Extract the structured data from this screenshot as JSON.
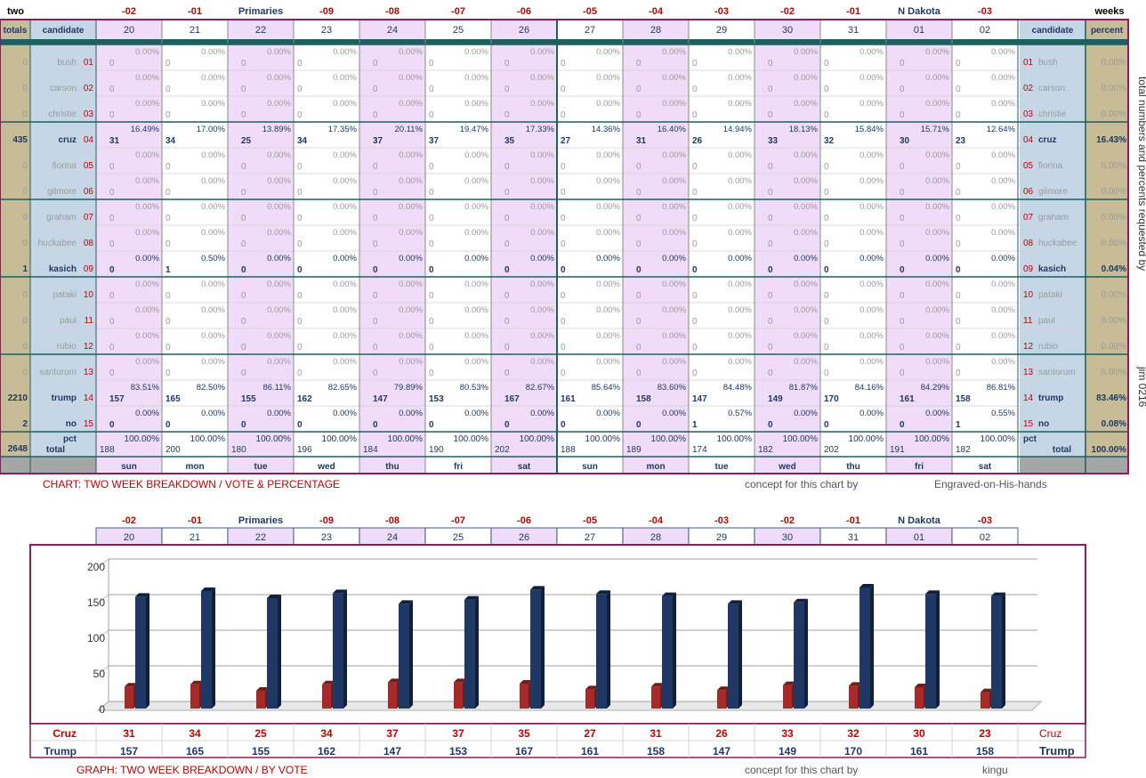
{
  "chart_data": [
    {
      "type": "table",
      "title": "CHART: TWO WEEK BREAKDOWN / VOTE & PERCENTAGE",
      "corner_left": "two",
      "corner_right": "weeks",
      "header_totals": "totals",
      "header_candidate": "candidate",
      "header_percent": "percent",
      "top_labels": [
        "-02",
        "-01",
        "Primaries",
        "-09",
        "-08",
        "-07",
        "-06",
        "-05",
        "-04",
        "-03",
        "-02",
        "-01",
        "N Dakota",
        "-03"
      ],
      "days": [
        "20",
        "21",
        "22",
        "23",
        "24",
        "25",
        "26",
        "27",
        "28",
        "29",
        "30",
        "31",
        "01",
        "02"
      ],
      "weekdays": [
        "sun",
        "mon",
        "tue",
        "wed",
        "thu",
        "fri",
        "sat",
        "sun",
        "mon",
        "tue",
        "wed",
        "thu",
        "fri",
        "sat"
      ],
      "candidates": [
        {
          "num": "01",
          "name": "bush",
          "total": "0",
          "percent": "0.00%"
        },
        {
          "num": "02",
          "name": "carson",
          "total": "0",
          "percent": "0.00%"
        },
        {
          "num": "03",
          "name": "christie",
          "total": "0",
          "percent": "0.00%"
        },
        {
          "num": "04",
          "name": "cruz",
          "total": "435",
          "percent": "16.43%",
          "values": [
            "31",
            "34",
            "25",
            "34",
            "37",
            "37",
            "35",
            "27",
            "31",
            "26",
            "33",
            "32",
            "30",
            "23"
          ],
          "pcts": [
            "16.49%",
            "17.00%",
            "13.89%",
            "17.35%",
            "20.11%",
            "19.47%",
            "17.33%",
            "14.36%",
            "16.40%",
            "14.94%",
            "18.13%",
            "15.84%",
            "15.71%",
            "12.64%"
          ]
        },
        {
          "num": "05",
          "name": "fiorina",
          "total": "0",
          "percent": "0.00%"
        },
        {
          "num": "06",
          "name": "gilmore",
          "total": "0",
          "percent": "0.00%"
        },
        {
          "num": "07",
          "name": "graham",
          "total": "0",
          "percent": "0.00%"
        },
        {
          "num": "08",
          "name": "huckabee",
          "total": "0",
          "percent": "0.00%"
        },
        {
          "num": "09",
          "name": "kasich",
          "total": "1",
          "percent": "0.04%",
          "values": [
            "0",
            "1",
            "0",
            "0",
            "0",
            "0",
            "0",
            "0",
            "0",
            "0",
            "0",
            "0",
            "0",
            "0"
          ],
          "pcts": [
            "0.00%",
            "0.50%",
            "0.00%",
            "0.00%",
            "0.00%",
            "0.00%",
            "0.00%",
            "0.00%",
            "0.00%",
            "0.00%",
            "0.00%",
            "0.00%",
            "0.00%",
            "0.00%"
          ]
        },
        {
          "num": "10",
          "name": "pataki",
          "total": "0",
          "percent": "0.00%"
        },
        {
          "num": "11",
          "name": "paul",
          "total": "0",
          "percent": "0.00%"
        },
        {
          "num": "12",
          "name": "rubio",
          "total": "0",
          "percent": "0.00%"
        },
        {
          "num": "13",
          "name": "santorum",
          "total": "0",
          "percent": "0.00%"
        },
        {
          "num": "14",
          "name": "trump",
          "total": "2210",
          "percent": "83.46%",
          "values": [
            "157",
            "165",
            "155",
            "162",
            "147",
            "153",
            "167",
            "161",
            "158",
            "147",
            "149",
            "170",
            "161",
            "158"
          ],
          "pcts": [
            "83.51%",
            "82.50%",
            "86.11%",
            "82.65%",
            "79.89%",
            "80.53%",
            "82.67%",
            "85.64%",
            "83.60%",
            "84.48%",
            "81.87%",
            "84.16%",
            "84.29%",
            "86.81%"
          ]
        },
        {
          "num": "15",
          "name": "no",
          "total": "2",
          "percent": "0.08%",
          "values": [
            "0",
            "0",
            "0",
            "0",
            "0",
            "0",
            "0",
            "0",
            "0",
            "1",
            "0",
            "0",
            "0",
            "1"
          ],
          "pcts": [
            "0.00%",
            "0.00%",
            "0.00%",
            "0.00%",
            "0.00%",
            "0.00%",
            "0.00%",
            "0.00%",
            "0.00%",
            "0.57%",
            "0.00%",
            "0.00%",
            "0.00%",
            "0.55%"
          ]
        }
      ],
      "zero_value": "0",
      "zero_pct": "0.00%",
      "total_row": {
        "label": "total",
        "pct_label": "pct",
        "grand_total": "2648",
        "grand_percent": "100.00%",
        "values": [
          "188",
          "200",
          "180",
          "196",
          "184",
          "190",
          "202",
          "188",
          "189",
          "174",
          "182",
          "202",
          "191",
          "182"
        ],
        "pcts": [
          "100.00%",
          "100.00%",
          "100.00%",
          "100.00%",
          "100.00%",
          "100.00%",
          "100.00%",
          "100.00%",
          "100.00%",
          "100.00%",
          "100.00%",
          "100.00%",
          "100.00%",
          "100.00%"
        ]
      },
      "credit_prefix": "concept for this chart by",
      "credit_name": "Engraved-on-His-hands",
      "side_note": "total numbers and percents requested by",
      "side_author": "jim 0216"
    },
    {
      "type": "bar",
      "title": "GRAPH: TWO WEEK BREAKDOWN / BY VOTE",
      "top_labels": [
        "-02",
        "-01",
        "Primaries",
        "-09",
        "-08",
        "-07",
        "-06",
        "-05",
        "-04",
        "-03",
        "-02",
        "-01",
        "N Dakota",
        "-03"
      ],
      "categories": [
        "20",
        "21",
        "22",
        "23",
        "24",
        "25",
        "26",
        "27",
        "28",
        "29",
        "30",
        "31",
        "01",
        "02"
      ],
      "yticks": [
        "0",
        "50",
        "100",
        "150",
        "200"
      ],
      "ylim": [
        0,
        200
      ],
      "series": [
        {
          "name": "Cruz",
          "values": [
            31,
            34,
            25,
            34,
            37,
            37,
            35,
            27,
            31,
            26,
            33,
            32,
            30,
            23
          ],
          "color": "#a52a2a"
        },
        {
          "name": "Trump",
          "values": [
            157,
            165,
            155,
            162,
            147,
            153,
            167,
            161,
            158,
            147,
            149,
            170,
            161,
            158
          ],
          "color": "#1f3864"
        }
      ],
      "credit_prefix": "concept for this chart by",
      "credit_name": "kingu"
    }
  ],
  "colors": {
    "pink": "#f0dcf8",
    "khaki": "#c8bc96",
    "blue_panel": "#c5d7e6",
    "teal": "#1f5f5f",
    "maroon": "#8b1d5e",
    "red_text": "#c00000",
    "navy": "#1f3864"
  }
}
